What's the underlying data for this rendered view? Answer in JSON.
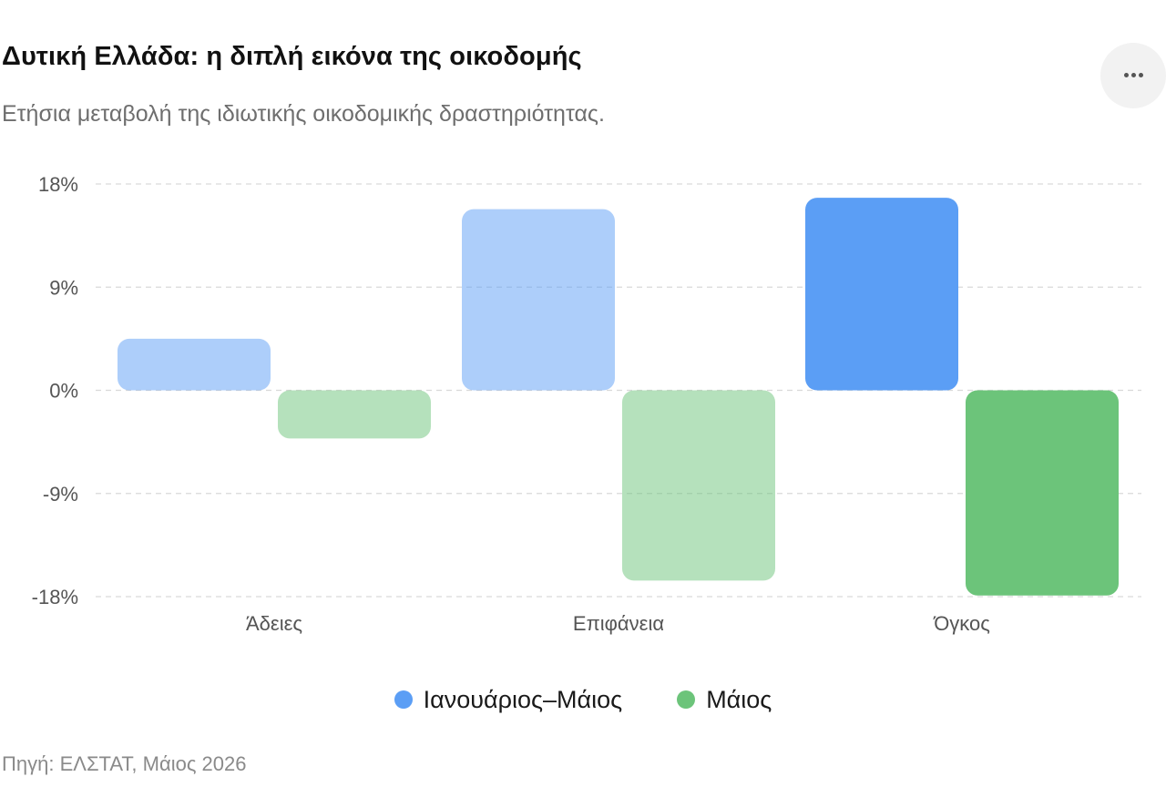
{
  "header": {
    "title": "Δυτική Ελλάδα: η διπλή εικόνα της οικοδομής",
    "subtitle": "Ετήσια μεταβολή της ιδιωτικής οικοδομικής δραστηριότητας."
  },
  "menu": {
    "icon": "more-horizontal-icon"
  },
  "footer": {
    "source": "Πηγή: ΕΛΣΤΑΤ, Μάιος 2026"
  },
  "colors": {
    "series1": "#5b9ef5",
    "series2": "#6cc47a",
    "grid": "#d9d9d9",
    "axis_text": "#555555"
  },
  "chart_data": {
    "type": "bar",
    "categories": [
      "Άδειες",
      "Επιφάνεια",
      "Όγκος"
    ],
    "series": [
      {
        "name": "Ιανουάριος–Μάιος",
        "values": [
          4.5,
          15.8,
          16.8
        ],
        "color": "#5b9ef5"
      },
      {
        "name": "Μάιος",
        "values": [
          -4.2,
          -16.6,
          -17.9
        ],
        "color": "#6cc47a"
      }
    ],
    "opacity_by_category": [
      0.5,
      0.5,
      1.0
    ],
    "y_ticks": [
      18,
      9,
      0,
      -9,
      -18
    ],
    "y_tick_labels": [
      "18%",
      "9%",
      "0%",
      "-9%",
      "-18%"
    ],
    "ylim": [
      -18,
      18
    ],
    "grid": true,
    "legend_position": "bottom-center"
  }
}
